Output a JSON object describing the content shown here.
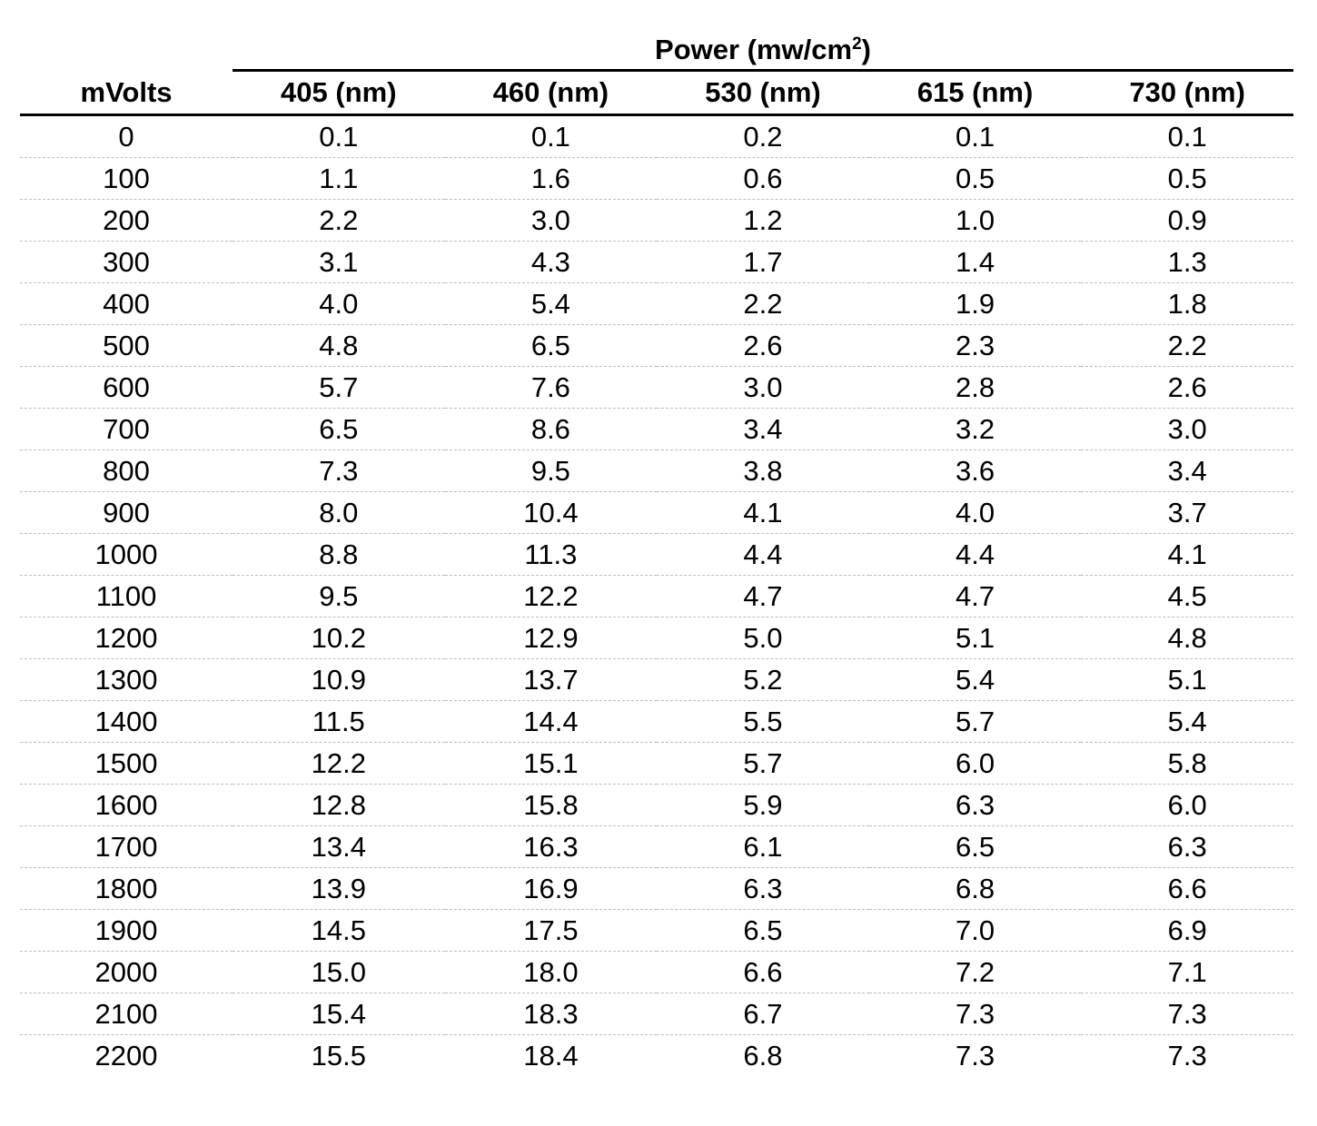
{
  "table": {
    "group_header": "Power (mw/cm",
    "group_header_sup": "2",
    "group_header_close": ")",
    "row_header": "mVolts",
    "columns": [
      "405 (nm)",
      "460 (nm)",
      "530 (nm)",
      "615 (nm)",
      "730 (nm)"
    ],
    "rows": [
      [
        "0",
        "0.1",
        "0.1",
        "0.2",
        "0.1",
        "0.1"
      ],
      [
        "100",
        "1.1",
        "1.6",
        "0.6",
        "0.5",
        "0.5"
      ],
      [
        "200",
        "2.2",
        "3.0",
        "1.2",
        "1.0",
        "0.9"
      ],
      [
        "300",
        "3.1",
        "4.3",
        "1.7",
        "1.4",
        "1.3"
      ],
      [
        "400",
        "4.0",
        "5.4",
        "2.2",
        "1.9",
        "1.8"
      ],
      [
        "500",
        "4.8",
        "6.5",
        "2.6",
        "2.3",
        "2.2"
      ],
      [
        "600",
        "5.7",
        "7.6",
        "3.0",
        "2.8",
        "2.6"
      ],
      [
        "700",
        "6.5",
        "8.6",
        "3.4",
        "3.2",
        "3.0"
      ],
      [
        "800",
        "7.3",
        "9.5",
        "3.8",
        "3.6",
        "3.4"
      ],
      [
        "900",
        "8.0",
        "10.4",
        "4.1",
        "4.0",
        "3.7"
      ],
      [
        "1000",
        "8.8",
        "11.3",
        "4.4",
        "4.4",
        "4.1"
      ],
      [
        "1100",
        "9.5",
        "12.2",
        "4.7",
        "4.7",
        "4.5"
      ],
      [
        "1200",
        "10.2",
        "12.9",
        "5.0",
        "5.1",
        "4.8"
      ],
      [
        "1300",
        "10.9",
        "13.7",
        "5.2",
        "5.4",
        "5.1"
      ],
      [
        "1400",
        "11.5",
        "14.4",
        "5.5",
        "5.7",
        "5.4"
      ],
      [
        "1500",
        "12.2",
        "15.1",
        "5.7",
        "6.0",
        "5.8"
      ],
      [
        "1600",
        "12.8",
        "15.8",
        "5.9",
        "6.3",
        "6.0"
      ],
      [
        "1700",
        "13.4",
        "16.3",
        "6.1",
        "6.5",
        "6.3"
      ],
      [
        "1800",
        "13.9",
        "16.9",
        "6.3",
        "6.8",
        "6.6"
      ],
      [
        "1900",
        "14.5",
        "17.5",
        "6.5",
        "7.0",
        "6.9"
      ],
      [
        "2000",
        "15.0",
        "18.0",
        "6.6",
        "7.2",
        "7.1"
      ],
      [
        "2100",
        "15.4",
        "18.3",
        "6.7",
        "7.3",
        "7.3"
      ],
      [
        "2200",
        "15.5",
        "18.4",
        "6.8",
        "7.3",
        "7.3"
      ]
    ]
  }
}
